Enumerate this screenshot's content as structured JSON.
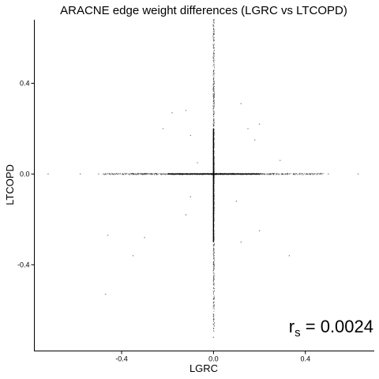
{
  "chart_data": {
    "type": "scatter",
    "title": "ARACNE edge weight differences (LGRC vs LTCOPD)",
    "xlabel": "LGRC",
    "ylabel": "LTCOPD",
    "xlim": [
      -0.78,
      0.7
    ],
    "ylim": [
      -0.78,
      0.68
    ],
    "x_ticks": [
      -0.4,
      0.0,
      0.4
    ],
    "x_tick_labels": [
      "-0.4",
      "0.0",
      "0.4"
    ],
    "y_ticks": [
      -0.4,
      0.0,
      0.4
    ],
    "y_tick_labels": [
      "-0.4",
      "0.0",
      "0.4"
    ],
    "grid": false,
    "point_color": "#000000",
    "annotation": {
      "base": "r",
      "subscript": "s",
      "equals": " = ",
      "value": "0.0024"
    },
    "points": [
      {
        "x": -0.05,
        "y": 0.0
      },
      {
        "x": -0.1,
        "y": 0.0
      },
      {
        "x": -0.15,
        "y": 0.0
      },
      {
        "x": -0.2,
        "y": 0.0
      },
      {
        "x": -0.25,
        "y": 0.0
      },
      {
        "x": -0.3,
        "y": 0.0
      },
      {
        "x": -0.35,
        "y": 0.0
      },
      {
        "x": -0.42,
        "y": 0.0
      },
      {
        "x": -0.5,
        "y": 0.0
      },
      {
        "x": -0.58,
        "y": 0.0
      },
      {
        "x": -0.72,
        "y": 0.0
      },
      {
        "x": 0.05,
        "y": 0.0
      },
      {
        "x": 0.1,
        "y": 0.0
      },
      {
        "x": 0.15,
        "y": 0.0
      },
      {
        "x": 0.2,
        "y": 0.0
      },
      {
        "x": 0.25,
        "y": 0.0
      },
      {
        "x": 0.3,
        "y": 0.0
      },
      {
        "x": 0.35,
        "y": 0.0
      },
      {
        "x": 0.42,
        "y": 0.0
      },
      {
        "x": 0.5,
        "y": 0.0
      },
      {
        "x": 0.63,
        "y": 0.0
      },
      {
        "x": 0.0,
        "y": 0.05
      },
      {
        "x": 0.0,
        "y": 0.1
      },
      {
        "x": 0.0,
        "y": 0.15
      },
      {
        "x": 0.0,
        "y": 0.2
      },
      {
        "x": 0.0,
        "y": 0.26
      },
      {
        "x": 0.0,
        "y": 0.32
      },
      {
        "x": 0.0,
        "y": 0.38
      },
      {
        "x": 0.0,
        "y": 0.45
      },
      {
        "x": 0.0,
        "y": 0.53
      },
      {
        "x": 0.0,
        "y": 0.62
      },
      {
        "x": 0.0,
        "y": -0.05
      },
      {
        "x": 0.0,
        "y": -0.1
      },
      {
        "x": 0.0,
        "y": -0.16
      },
      {
        "x": 0.0,
        "y": -0.22
      },
      {
        "x": 0.0,
        "y": -0.28
      },
      {
        "x": 0.0,
        "y": -0.34
      },
      {
        "x": 0.0,
        "y": -0.4
      },
      {
        "x": 0.0,
        "y": -0.47
      },
      {
        "x": 0.0,
        "y": -0.55
      },
      {
        "x": 0.0,
        "y": -0.64
      },
      {
        "x": 0.0,
        "y": -0.72
      },
      {
        "x": -0.46,
        "y": -0.27
      },
      {
        "x": -0.47,
        "y": -0.53
      },
      {
        "x": -0.35,
        "y": -0.36
      },
      {
        "x": -0.3,
        "y": -0.28
      },
      {
        "x": -0.12,
        "y": -0.18
      },
      {
        "x": -0.1,
        "y": -0.1
      },
      {
        "x": -0.22,
        "y": 0.2
      },
      {
        "x": -0.18,
        "y": 0.27
      },
      {
        "x": -0.1,
        "y": 0.17
      },
      {
        "x": -0.12,
        "y": 0.28
      },
      {
        "x": 0.12,
        "y": 0.31
      },
      {
        "x": 0.15,
        "y": 0.2
      },
      {
        "x": 0.2,
        "y": 0.22
      },
      {
        "x": 0.18,
        "y": 0.15
      },
      {
        "x": 0.1,
        "y": -0.12
      },
      {
        "x": 0.12,
        "y": -0.3
      },
      {
        "x": 0.2,
        "y": -0.25
      },
      {
        "x": 0.33,
        "y": -0.36
      },
      {
        "x": 0.29,
        "y": 0.06
      },
      {
        "x": -0.07,
        "y": 0.05
      }
    ]
  }
}
